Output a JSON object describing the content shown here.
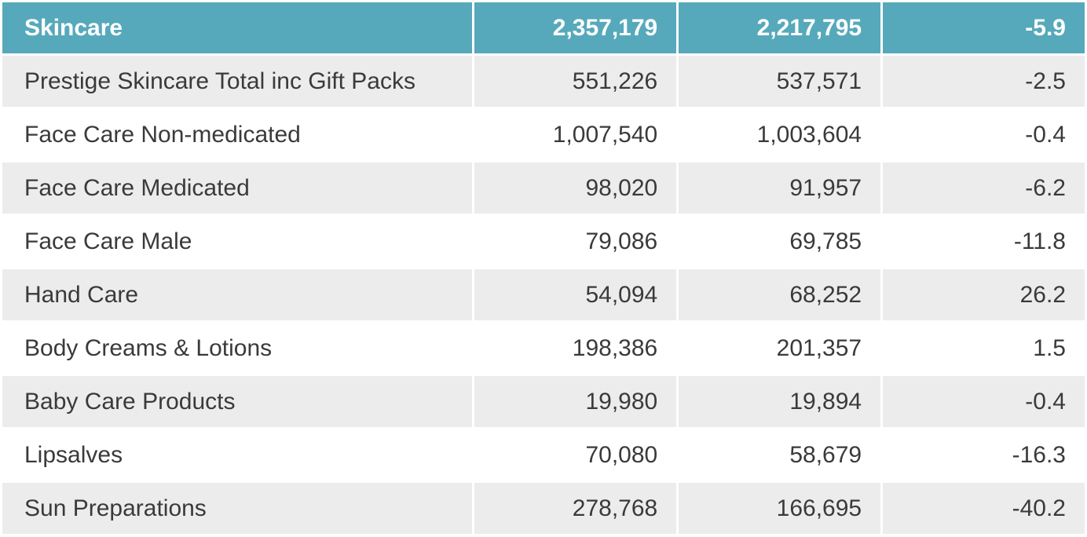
{
  "chart_data": {
    "type": "table",
    "colors": {
      "header_bg": "#56a9bb",
      "header_text": "#ffffff",
      "shaded_row": "#ececec",
      "text": "#3a3a3a"
    },
    "header": {
      "category": "Skincare",
      "value1": "2,357,179",
      "value2": "2,217,795",
      "change": "-5.9"
    },
    "rows": [
      {
        "category": "Prestige Skincare Total inc Gift Packs",
        "value1": "551,226",
        "value2": "537,571",
        "change": "-2.5"
      },
      {
        "category": "Face Care Non-medicated",
        "value1": "1,007,540",
        "value2": "1,003,604",
        "change": "-0.4"
      },
      {
        "category": "Face Care Medicated",
        "value1": "98,020",
        "value2": "91,957",
        "change": "-6.2"
      },
      {
        "category": "Face Care Male",
        "value1": "79,086",
        "value2": "69,785",
        "change": "-11.8"
      },
      {
        "category": "Hand Care",
        "value1": "54,094",
        "value2": "68,252",
        "change": "26.2"
      },
      {
        "category": "Body Creams & Lotions",
        "value1": "198,386",
        "value2": "201,357",
        "change": "1.5"
      },
      {
        "category": "Baby Care Products",
        "value1": "19,980",
        "value2": "19,894",
        "change": "-0.4"
      },
      {
        "category": "Lipsalves",
        "value1": "70,080",
        "value2": "58,679",
        "change": "-16.3"
      },
      {
        "category": "Sun Preparations",
        "value1": "278,768",
        "value2": "166,695",
        "change": "-40.2"
      }
    ]
  }
}
